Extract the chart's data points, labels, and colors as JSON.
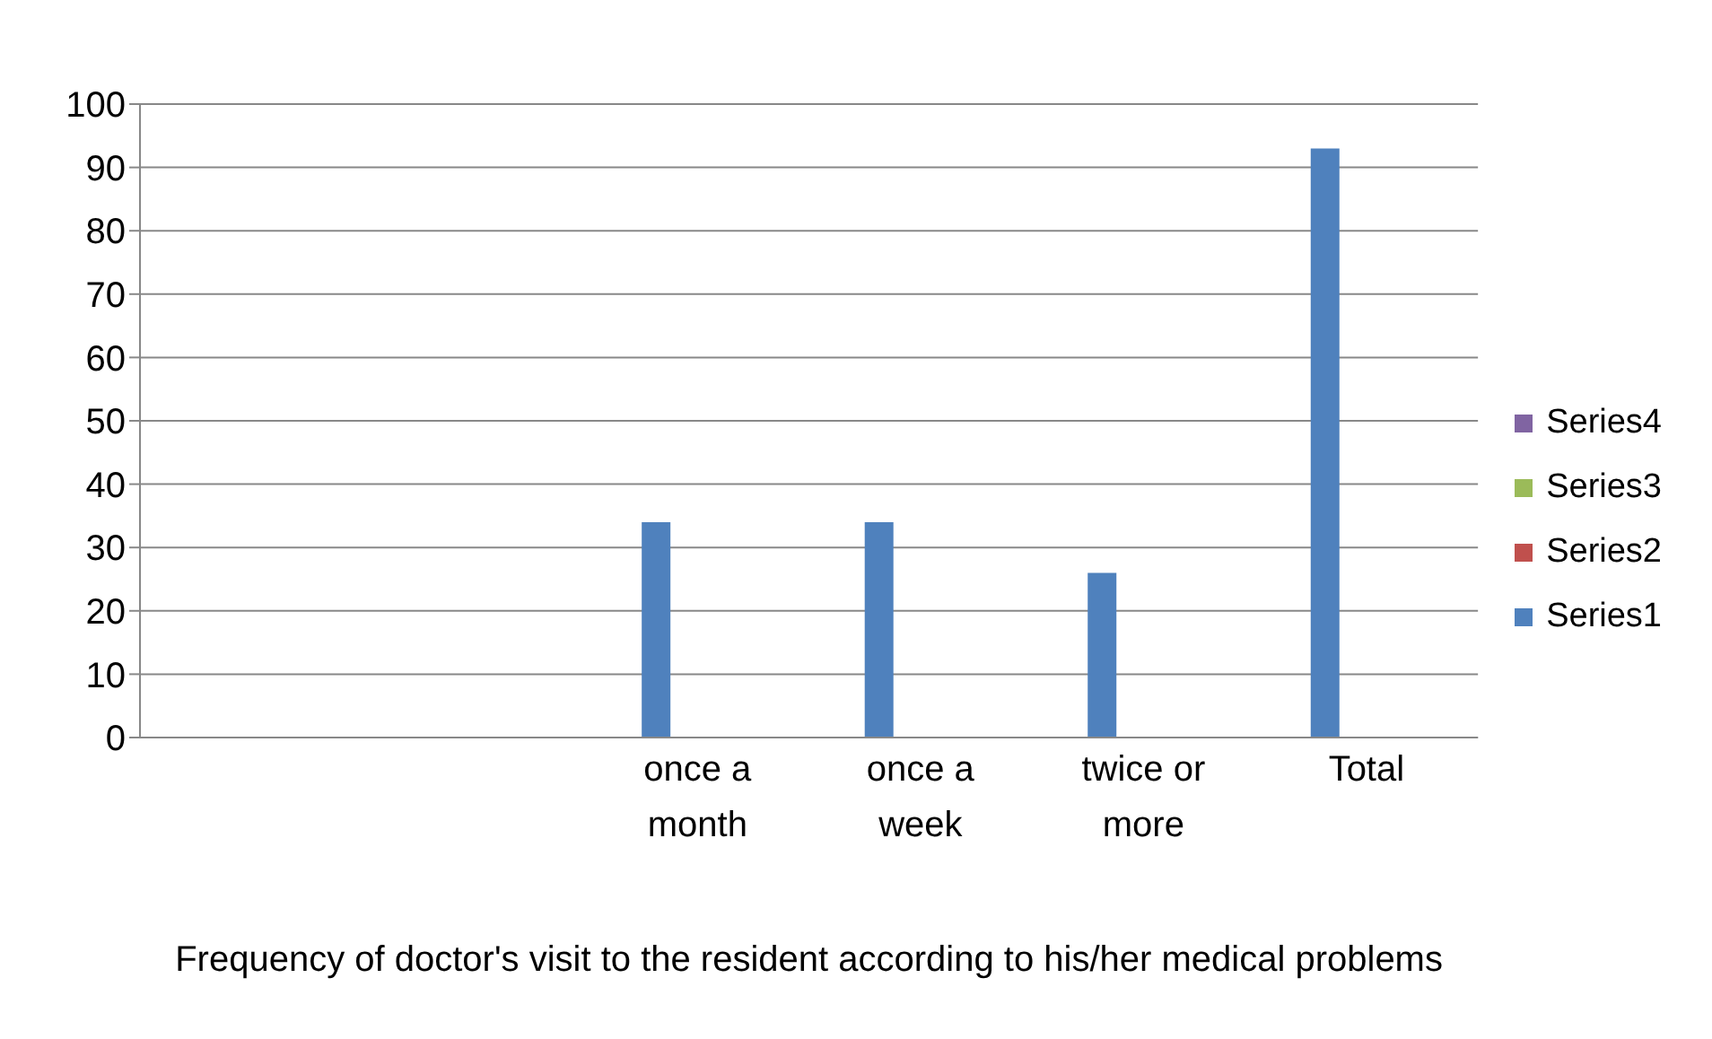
{
  "chart_data": {
    "type": "bar",
    "xlabel": "Frequency of doctor's visit to the resident according to his/her medical problems",
    "categories": [
      null,
      null,
      "once a month",
      "once a week",
      "twice or more",
      "Total"
    ],
    "series": [
      {
        "name": "Series1",
        "color": "#4f81bd",
        "values": [
          null,
          0,
          34,
          34,
          26,
          93
        ]
      },
      {
        "name": "Series2",
        "color": "#c0504d",
        "values": [
          null,
          null,
          null,
          null,
          null,
          null
        ]
      },
      {
        "name": "Series3",
        "color": "#9bbb59",
        "values": [
          null,
          null,
          null,
          null,
          null,
          null
        ]
      },
      {
        "name": "Series4",
        "color": "#8064a2",
        "values": [
          null,
          null,
          null,
          null,
          null,
          null
        ]
      }
    ],
    "ylim": [
      0,
      100
    ],
    "yticks": [
      0,
      10,
      20,
      30,
      40,
      50,
      60,
      70,
      80,
      90,
      100
    ],
    "grid": "y",
    "legend": "right"
  }
}
